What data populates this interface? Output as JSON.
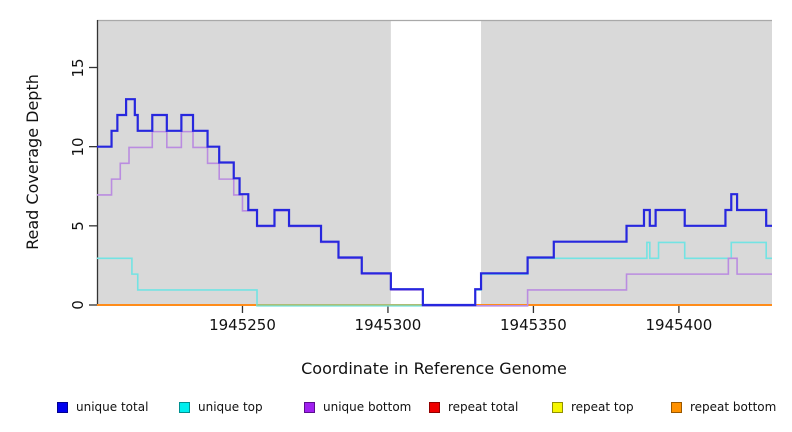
{
  "figure": {
    "xlabel": "Coordinate in Reference Genome",
    "ylabel": "Read Coverage Depth"
  },
  "chart_data": {
    "type": "line",
    "subtype": "step",
    "title": "",
    "xlabel": "Coordinate in Reference Genome",
    "ylabel": "Read Coverage Depth",
    "xlim": [
      1945200,
      1945432
    ],
    "ylim": [
      0,
      18
    ],
    "x_ticks": [
      1945250,
      1945300,
      1945350,
      1945400
    ],
    "y_ticks": [
      0,
      5,
      10,
      15
    ],
    "grid": false,
    "plot_background": "#ffffff",
    "shaded_bands": [
      {
        "from": 1945200,
        "to": 1945301,
        "color": "#d9d9d9"
      },
      {
        "from": 1945332,
        "to": 1945432,
        "color": "#d9d9d9"
      }
    ],
    "gap_region": {
      "from": 1945301,
      "to": 1945332
    },
    "axis_color": "#333333",
    "top_border_color": "#a9a9a9",
    "series": [
      {
        "name": "repeat total",
        "color": "#dd2222",
        "width": 1.5,
        "points": [
          [
            1945200,
            0
          ],
          [
            1945432,
            0
          ]
        ]
      },
      {
        "name": "repeat top",
        "color": "#f0f000",
        "width": 1.5,
        "points": [
          [
            1945200,
            0
          ],
          [
            1945432,
            0
          ]
        ]
      },
      {
        "name": "repeat bottom",
        "color": "#ff8c1a",
        "width": 2,
        "points": [
          [
            1945200,
            0
          ],
          [
            1945432,
            0
          ]
        ]
      },
      {
        "name": "unique top",
        "color": "#73e3e3",
        "width": 1.6,
        "points": [
          [
            1945200,
            3
          ],
          [
            1945212,
            2
          ],
          [
            1945214,
            1
          ],
          [
            1945255,
            0
          ],
          [
            1945330,
            1
          ],
          [
            1945332,
            2
          ],
          [
            1945348,
            3
          ],
          [
            1945389,
            4
          ],
          [
            1945390,
            3
          ],
          [
            1945393,
            4
          ],
          [
            1945402,
            3
          ],
          [
            1945418,
            4
          ],
          [
            1945430,
            3
          ],
          [
            1945432,
            3
          ]
        ]
      },
      {
        "name": "baseline highlight",
        "color": "#93cd93",
        "width": 1.5,
        "points": [
          [
            1945255,
            0
          ],
          [
            1945330,
            0
          ]
        ]
      },
      {
        "name": "unique bottom",
        "color": "#ba8ce0",
        "width": 1.6,
        "points": [
          [
            1945200,
            7
          ],
          [
            1945205,
            8
          ],
          [
            1945208,
            9
          ],
          [
            1945211,
            10
          ],
          [
            1945219,
            11
          ],
          [
            1945224,
            10
          ],
          [
            1945229,
            11
          ],
          [
            1945233,
            10
          ],
          [
            1945238,
            9
          ],
          [
            1945242,
            8
          ],
          [
            1945247,
            7
          ],
          [
            1945250,
            6
          ],
          [
            1945255,
            5
          ],
          [
            1945261,
            6
          ],
          [
            1945266,
            5
          ],
          [
            1945277,
            4
          ],
          [
            1945283,
            3
          ],
          [
            1945291,
            2
          ],
          [
            1945301,
            1
          ],
          [
            1945312,
            0
          ],
          [
            1945348,
            1
          ],
          [
            1945382,
            2
          ],
          [
            1945417,
            3
          ],
          [
            1945420,
            2
          ],
          [
            1945432,
            2
          ]
        ]
      },
      {
        "name": "unique total",
        "color": "#2727de",
        "width": 2.2,
        "points": [
          [
            1945200,
            10
          ],
          [
            1945205,
            11
          ],
          [
            1945207,
            12
          ],
          [
            1945210,
            13
          ],
          [
            1945213,
            12
          ],
          [
            1945214,
            11
          ],
          [
            1945219,
            12
          ],
          [
            1945224,
            11
          ],
          [
            1945229,
            12
          ],
          [
            1945233,
            11
          ],
          [
            1945238,
            10
          ],
          [
            1945242,
            9
          ],
          [
            1945247,
            8
          ],
          [
            1945249,
            7
          ],
          [
            1945252,
            6
          ],
          [
            1945255,
            5
          ],
          [
            1945261,
            6
          ],
          [
            1945266,
            5
          ],
          [
            1945277,
            4
          ],
          [
            1945283,
            3
          ],
          [
            1945291,
            2
          ],
          [
            1945301,
            1
          ],
          [
            1945312,
            0
          ],
          [
            1945330,
            1
          ],
          [
            1945332,
            2
          ],
          [
            1945348,
            3
          ],
          [
            1945357,
            4
          ],
          [
            1945382,
            5
          ],
          [
            1945388,
            6
          ],
          [
            1945390,
            5
          ],
          [
            1945392,
            6
          ],
          [
            1945402,
            5
          ],
          [
            1945416,
            6
          ],
          [
            1945418,
            7
          ],
          [
            1945420,
            6
          ],
          [
            1945430,
            5
          ],
          [
            1945432,
            5
          ]
        ]
      }
    ]
  },
  "legend": {
    "items": [
      {
        "label": "unique total",
        "swatch": "#0000ee",
        "border": "#000090"
      },
      {
        "label": "unique top",
        "swatch": "#00eeee",
        "border": "#009090"
      },
      {
        "label": "unique bottom",
        "swatch": "#a020f0",
        "border": "#5c0d8f"
      },
      {
        "label": "repeat total",
        "swatch": "#ee0000",
        "border": "#900000"
      },
      {
        "label": "repeat top",
        "swatch": "#f5f500",
        "border": "#909000"
      },
      {
        "label": "repeat bottom",
        "swatch": "#ff9100",
        "border": "#995700"
      }
    ]
  }
}
